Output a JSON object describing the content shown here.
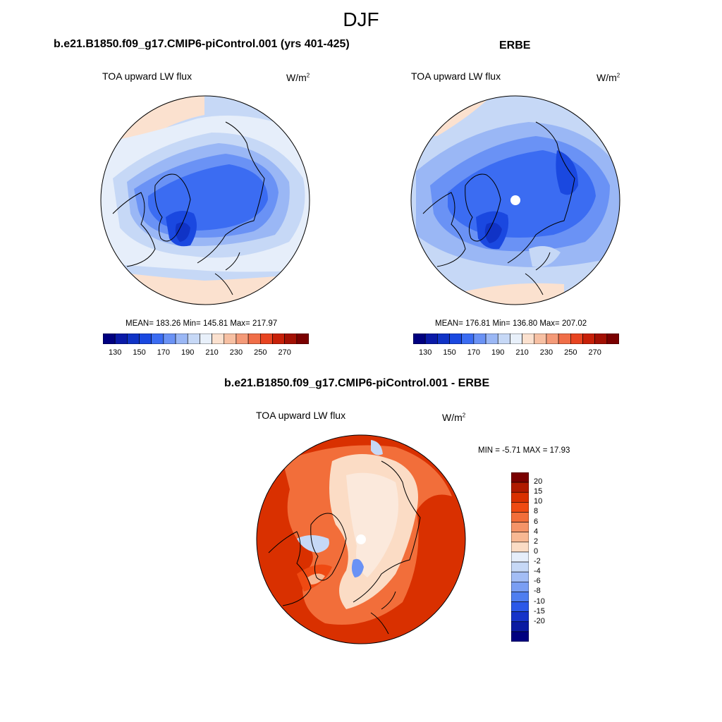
{
  "figure_title": "DJF",
  "panels": [
    {
      "title": "b.e21.B1850.f09_g17.CMIP6-piControl.001 (yrs 401-425)",
      "variable": "TOA upward LW flux",
      "units_base": "W/m",
      "units_exp": "2",
      "stats": "MEAN= 183.26  Min= 145.81  Max= 217.97"
    },
    {
      "title": "ERBE",
      "variable": "TOA upward LW flux",
      "units_base": "W/m",
      "units_exp": "2",
      "stats": "MEAN= 176.81  Min= 136.80  Max= 207.02"
    },
    {
      "title": "b.e21.B1850.f09_g17.CMIP6-piControl.001 - ERBE",
      "variable": "TOA upward LW flux",
      "units_base": "W/m",
      "units_exp": "2",
      "stats": "MIN =  -5.71 MAX =  17.93"
    }
  ],
  "colorbars": {
    "absolute": {
      "colors": [
        "#000080",
        "#0a1aa8",
        "#1033c6",
        "#1a48e0",
        "#3b6cf2",
        "#6a92f5",
        "#9ab7f5",
        "#c6d8f6",
        "#e8f0fa",
        "#fbe1cf",
        "#f7c0a3",
        "#f49a78",
        "#f06e48",
        "#e84421",
        "#c72008",
        "#a31003",
        "#7a0000"
      ],
      "tick_labels": [
        "130",
        "150",
        "170",
        "190",
        "210",
        "230",
        "250",
        "270"
      ]
    },
    "difference": {
      "colors": [
        "#7a0000",
        "#b01a00",
        "#d93000",
        "#ef4a12",
        "#f26e3a",
        "#f59468",
        "#f8b893",
        "#fbdcc5",
        "#e6eefa",
        "#c6d8f6",
        "#a3bdf5",
        "#7a9ef3",
        "#4f7ef0",
        "#2b58e8",
        "#1633c9",
        "#0a1aa2",
        "#000080"
      ],
      "tick_labels": [
        "20",
        "15",
        "10",
        "8",
        "6",
        "4",
        "2",
        "0",
        "-2",
        "-4",
        "-6",
        "-8",
        "-10",
        "-15",
        "-20"
      ]
    }
  },
  "map_colors": {
    "ocean_light": "#e6eefa",
    "warm_light": "#fbe1cf",
    "blue_1": "#c6d8f6",
    "blue_2": "#9ab7f5",
    "blue_3": "#6a92f5",
    "blue_4": "#3b6cf2",
    "blue_5": "#1a48e0",
    "blue_6": "#1033c6",
    "diff_bg": "#d93000",
    "diff_mid": "#f26e3a",
    "diff_light": "#fbdcc5",
    "diff_neutral": "#fbe9dc"
  }
}
